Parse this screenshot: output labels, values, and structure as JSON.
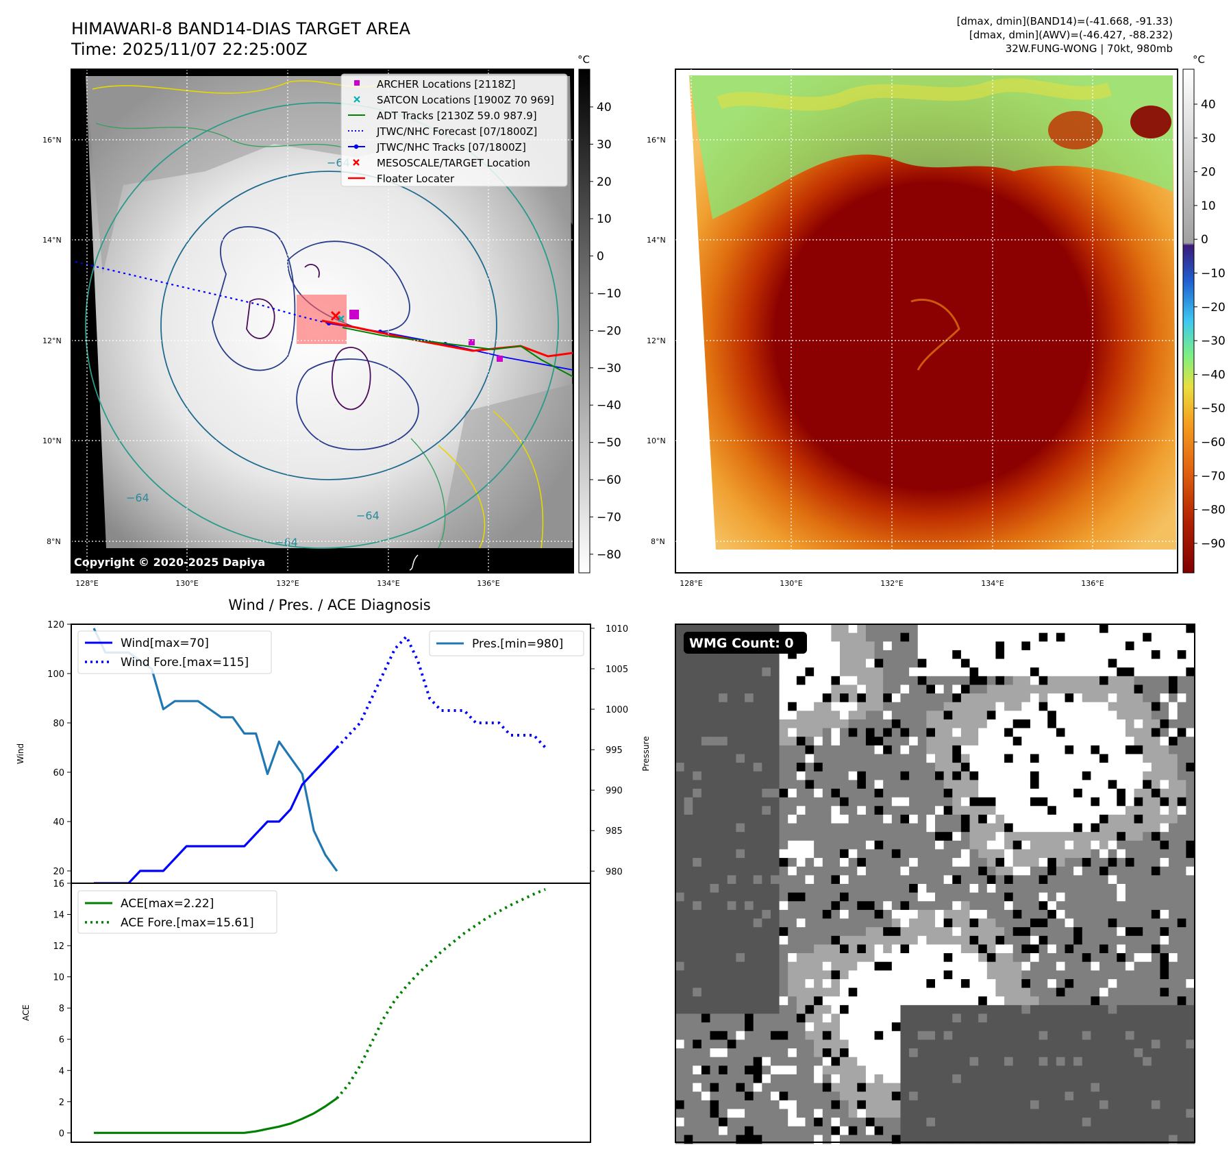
{
  "header": {
    "title_line1": "HIMAWARI-8 BAND14-DIAS TARGET AREA",
    "title_line2": "Time: 2025/11/07 22:25:00Z",
    "info_line1": "[dmax, dmin](BAND14)=(-41.668, -91.33)",
    "info_line2": "[dmax, dmin](AWV)=(-46.427, -88.232)",
    "info_line3": "32W.FUNG-WONG | 70kt, 980mb"
  },
  "maps": {
    "lat_labels": [
      "16°N",
      "14°N",
      "12°N",
      "10°N",
      "8°N"
    ],
    "lon_labels": [
      "128°E",
      "130°E",
      "132°E",
      "134°E",
      "136°E"
    ],
    "colorbar_unit": "°C",
    "left_colorbar_ticks": [
      "40",
      "30",
      "20",
      "10",
      "0",
      "−10",
      "−20",
      "−30",
      "−40",
      "−50",
      "−60",
      "−70",
      "−80"
    ],
    "right_colorbar_ticks": [
      "40",
      "30",
      "20",
      "10",
      "0",
      "−10",
      "−20",
      "−30",
      "−40",
      "−50",
      "−60",
      "−70",
      "−80",
      "−90"
    ],
    "copyright": "Copyright © 2020-2025 Dapiya",
    "contour_labels": [
      "−64",
      "−64",
      "−64",
      "−64"
    ],
    "colors": {
      "archer": "#cc00cc",
      "satcon": "#00b3b3",
      "adt": "#008000",
      "jtwc": "#0000ff",
      "target": "#ff0000",
      "floater": "#ff0000"
    }
  },
  "legend": [
    {
      "label": "ARCHER Locations [2118Z]",
      "marker": "square",
      "color": "#cc00cc"
    },
    {
      "label": "SATCON Locations [1900Z 70 969]",
      "marker": "x",
      "color": "#00b3b3"
    },
    {
      "label": "ADT Tracks [2130Z 59.0 987.9]",
      "marker": "line",
      "color": "#008000"
    },
    {
      "label": "JTWC/NHC Forecast [07/1800Z]",
      "marker": "dotted",
      "color": "#0000ff"
    },
    {
      "label": "JTWC/NHC Tracks [07/1800Z]",
      "marker": "line-dot",
      "color": "#0000ff"
    },
    {
      "label": "MESOSCALE/TARGET Location",
      "marker": "x",
      "color": "#ff0000"
    },
    {
      "label": "Floater Locater",
      "marker": "line",
      "color": "#ff0000"
    }
  ],
  "wmg": {
    "label": "WMG Count: 0"
  },
  "chart_data": [
    {
      "type": "line",
      "title": "Wind / Pres. / ACE Diagnosis",
      "ylabel": "Wind",
      "ylabel_right": "Pressure",
      "ylim": [
        15,
        120
      ],
      "ylim_right": [
        978.5,
        1010.5
      ],
      "yticks": [
        20,
        40,
        60,
        80,
        100,
        120
      ],
      "yticks_right": [
        980,
        985,
        990,
        995,
        1000,
        1005,
        1010
      ],
      "series": [
        {
          "name": "Wind[max=70]",
          "style": "solid",
          "color": "#0000ff",
          "axis": "left",
          "values": [
            15,
            15,
            15,
            15,
            20,
            20,
            20,
            25,
            30,
            30,
            30,
            30,
            30,
            30,
            35,
            40,
            40,
            45,
            55,
            60,
            65,
            70
          ]
        },
        {
          "name": "Wind Fore.[max=115]",
          "style": "dotted",
          "color": "#0000ff",
          "axis": "left",
          "values": [
            70,
            75,
            80,
            90,
            100,
            110,
            115,
            105,
            90,
            85,
            85,
            85,
            80,
            80,
            80,
            75,
            75,
            75,
            70
          ]
        },
        {
          "name": "Pres.[min=980]",
          "style": "solid",
          "color": "#1f77b4",
          "axis": "right",
          "values": [
            1010,
            1007,
            1007,
            1007,
            1006,
            1005,
            1000,
            1001,
            1001,
            1001,
            1000,
            999,
            999,
            997,
            997,
            992,
            996,
            994,
            992,
            985,
            982,
            980
          ]
        }
      ]
    },
    {
      "type": "line",
      "ylabel": "ACE",
      "ylim": [
        -0.6,
        16
      ],
      "yticks": [
        0,
        2,
        4,
        6,
        8,
        10,
        12,
        14,
        16
      ],
      "series": [
        {
          "name": "ACE[max=2.22]",
          "style": "solid",
          "color": "#008000",
          "values": [
            0,
            0,
            0,
            0,
            0,
            0,
            0,
            0,
            0,
            0,
            0,
            0,
            0,
            0,
            0.1,
            0.25,
            0.4,
            0.6,
            0.9,
            1.25,
            1.7,
            2.22
          ]
        },
        {
          "name": "ACE Fore.[max=15.61]",
          "style": "dotted",
          "color": "#008000",
          "values": [
            2.22,
            3.1,
            4.3,
            5.8,
            7.3,
            8.5,
            9.4,
            10.2,
            10.9,
            11.6,
            12.2,
            12.8,
            13.3,
            13.8,
            14.2,
            14.6,
            14.95,
            15.3,
            15.61
          ]
        }
      ]
    }
  ]
}
